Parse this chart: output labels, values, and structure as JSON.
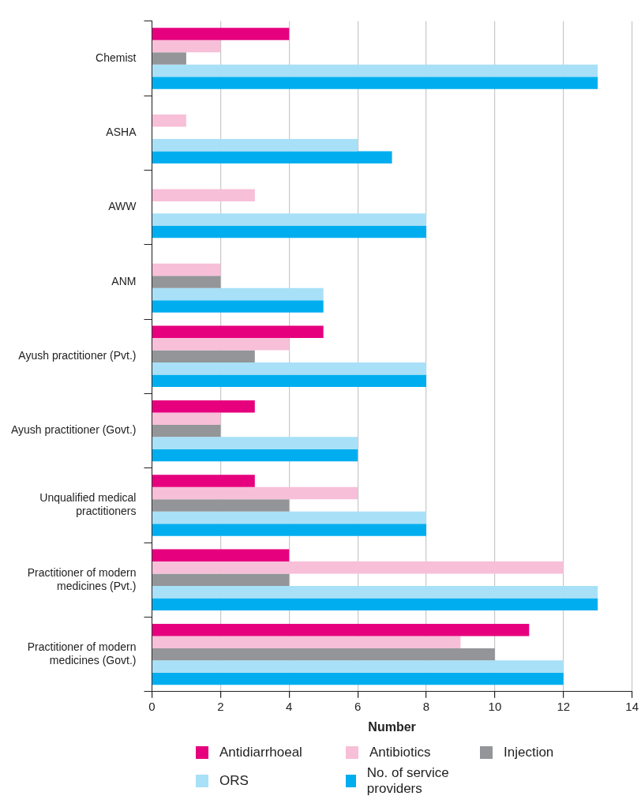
{
  "chart_data": {
    "type": "bar",
    "orientation": "horizontal",
    "xlabel": "Number",
    "categories": [
      "Chemist",
      "ASHA",
      "AWW",
      "ANM",
      "Ayush practitioner (Pvt.)",
      "Ayush practitioner (Govt.)",
      "Unqualified medical practitioners",
      "Practitioner of modern medicines (Pvt.)",
      "Practitioner of modern medicines (Govt.)"
    ],
    "series": [
      {
        "name": "Antidiarrhoeal",
        "color": "#e6007e",
        "values": [
          4,
          0,
          0,
          0,
          5,
          3,
          3,
          4,
          11
        ]
      },
      {
        "name": "Antibiotics",
        "color": "#f7bfd8",
        "values": [
          2,
          1,
          3,
          2,
          4,
          2,
          6,
          12,
          9
        ]
      },
      {
        "name": "Injection",
        "color": "#939598",
        "values": [
          1,
          0,
          0,
          2,
          3,
          2,
          4,
          4,
          10
        ]
      },
      {
        "name": "ORS",
        "color": "#a8e0f8",
        "values": [
          13,
          6,
          8,
          5,
          8,
          6,
          8,
          13,
          12
        ]
      },
      {
        "name": "No. of service providers",
        "color": "#00aeef",
        "values": [
          13,
          7,
          8,
          5,
          8,
          6,
          8,
          13,
          12
        ]
      }
    ],
    "xlim": [
      0,
      14
    ],
    "xticks": [
      0,
      2,
      4,
      6,
      8,
      10,
      12,
      14
    ],
    "grid": "x",
    "legend": "bottom"
  }
}
